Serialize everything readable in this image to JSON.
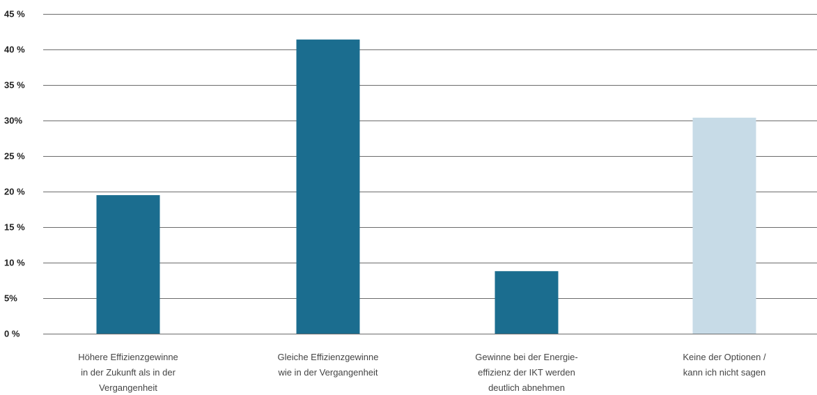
{
  "chart_data": {
    "type": "bar",
    "categories": [
      [
        "Höhere Effizienzgewinne",
        "in der Zukunft als in der",
        "Vergangenheit"
      ],
      [
        "Gleiche Effizienzgewinne",
        "wie in der Vergangenheit"
      ],
      [
        "Gewinne bei der Energie-",
        "effizienz der IKT werden",
        "deutlich abnehmen"
      ],
      [
        "Keine der Optionen /",
        "kann ich nicht sagen"
      ]
    ],
    "values": [
      19.5,
      41.4,
      8.8,
      30.4
    ],
    "bar_colors": [
      "#1b6d8f",
      "#1b6d8f",
      "#1b6d8f",
      "#c7dbe7"
    ],
    "ylim": [
      0,
      45
    ],
    "y_ticks": [
      0,
      5,
      10,
      15,
      20,
      25,
      30,
      35,
      40,
      45
    ],
    "y_tick_labels": [
      "0 %",
      "5%",
      "10 %",
      "15 %",
      "20 %",
      "25 %",
      "30%",
      "35 %",
      "40 %",
      "45 %"
    ],
    "grid": true,
    "gridline_color": "#6b6b6b",
    "title": "",
    "xlabel": "",
    "ylabel": ""
  }
}
